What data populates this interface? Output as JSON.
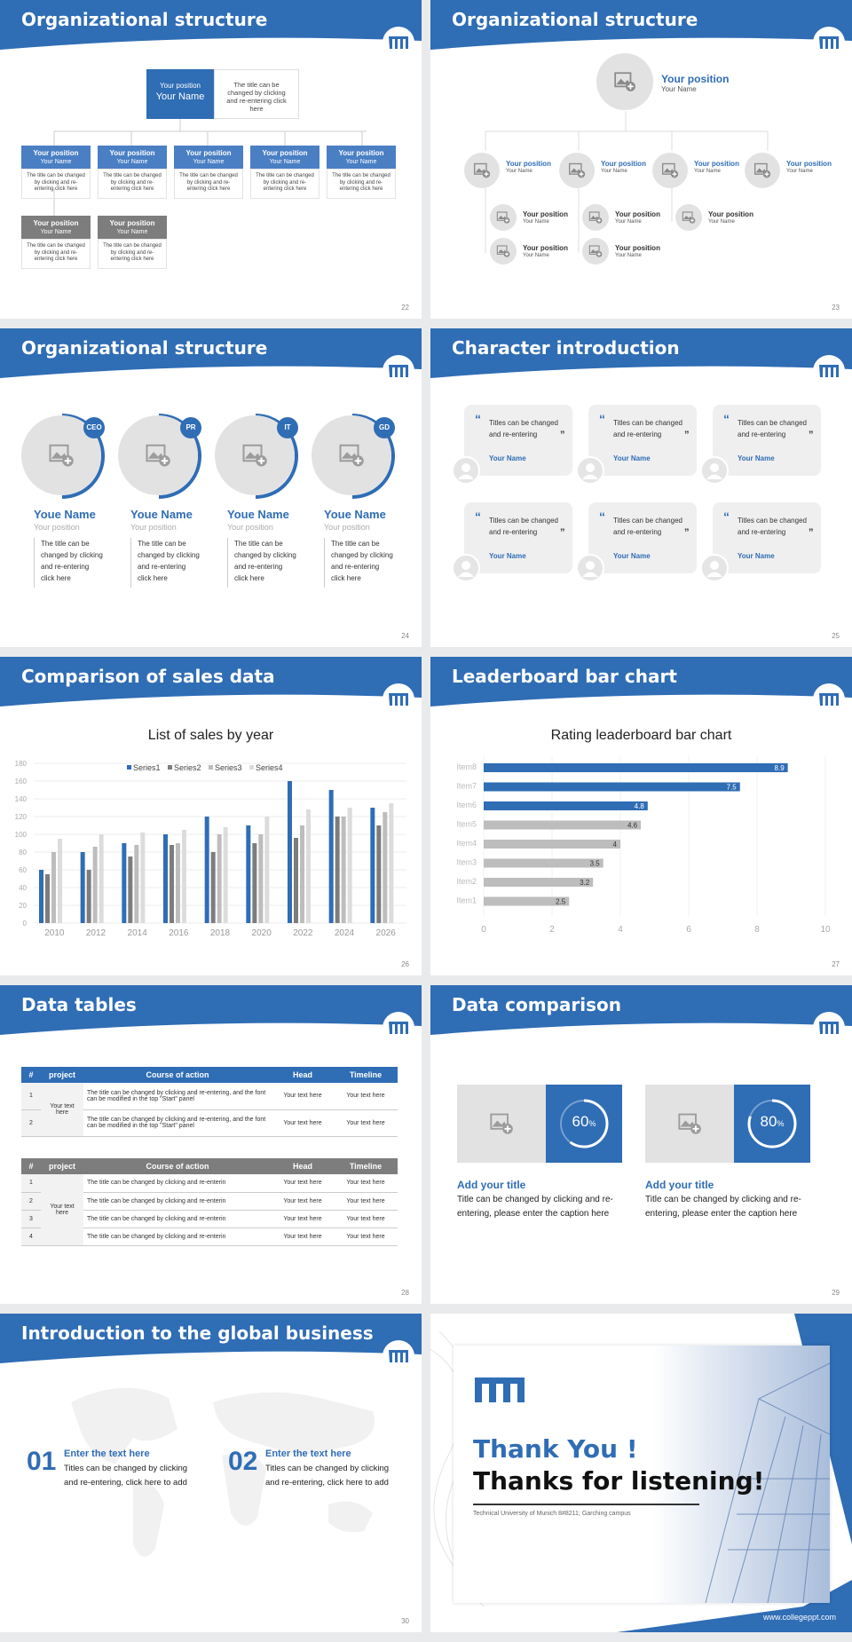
{
  "colors": {
    "brand": "#2f6db5",
    "gray_box": "#7d7d7d",
    "light_gray": "#e2e2e2"
  },
  "logo_text": "TUM",
  "s22": {
    "title": "Organizational structure",
    "num": "22",
    "top": {
      "pos": "Your position",
      "name": "Your Name",
      "desc": "The title can be changed by clicking and re-entering click here"
    },
    "items": [
      {
        "pos": "Your position",
        "name": "Your Name",
        "desc": "The title can be changed by clicking and re-entering click here"
      },
      {
        "pos": "Your position",
        "name": "Your Name",
        "desc": "The title can be changed by clicking and re-entering click here"
      },
      {
        "pos": "Your position",
        "name": "Your Name",
        "desc": "The title can be changed by clicking and re-entering click here"
      },
      {
        "pos": "Your position",
        "name": "Your Name",
        "desc": "The title can be changed by clicking and re-entering click here"
      },
      {
        "pos": "Your position",
        "name": "Your Name",
        "desc": "The title can be changed by clicking and re-entering click here"
      },
      {
        "pos": "Your position",
        "name": "Your Name",
        "desc": "The title can be changed by clicking and re-entering click here"
      },
      {
        "pos": "Your position",
        "name": "Your Name",
        "desc": "The title can be changed by clicking and re-entering click here"
      }
    ]
  },
  "s23": {
    "title": "Organizational structure",
    "num": "23",
    "pos": "Your position",
    "name": "Your Name"
  },
  "s24": {
    "title": "Organizational structure",
    "num": "24",
    "people": [
      {
        "badge": "CEO",
        "name": "Youe Name",
        "pos": "Your position",
        "desc": "The title can be changed by clicking and re-entering click here"
      },
      {
        "badge": "PR",
        "name": "Youe Name",
        "pos": "Your position",
        "desc": "The title can be changed by clicking and re-entering click here"
      },
      {
        "badge": "IT",
        "name": "Youe Name",
        "pos": "Your position",
        "desc": "The title can be changed by clicking and re-entering click here"
      },
      {
        "badge": "GD",
        "name": "Youe Name",
        "pos": "Your position",
        "desc": "The title can be changed by clicking and re-entering click here"
      }
    ]
  },
  "s25": {
    "title": "Character introduction",
    "num": "25",
    "quote": "Titles can be changed and re-entering",
    "name": "Your Name"
  },
  "s26": {
    "title": "Comparison of sales data",
    "num": "26"
  },
  "s27": {
    "title": "Leaderboard bar chart",
    "num": "27"
  },
  "chart_data": [
    {
      "type": "bar",
      "title": "List of sales by year",
      "categories": [
        "2010",
        "2012",
        "2014",
        "2016",
        "2018",
        "2020",
        "2022",
        "2024",
        "2026"
      ],
      "series": [
        {
          "name": "Series1",
          "values": [
            60,
            80,
            90,
            100,
            120,
            110,
            160,
            150,
            130
          ]
        },
        {
          "name": "Series2",
          "values": [
            55,
            60,
            75,
            88,
            80,
            90,
            96,
            120,
            110
          ]
        },
        {
          "name": "Series3",
          "values": [
            80,
            86,
            88,
            90,
            100,
            100,
            110,
            120,
            125
          ]
        },
        {
          "name": "Series4",
          "values": [
            95,
            100,
            102,
            105,
            108,
            120,
            128,
            130,
            135
          ]
        }
      ],
      "ylim": [
        0,
        180
      ],
      "yticks": [
        0,
        20,
        40,
        60,
        80,
        100,
        120,
        140,
        160,
        180
      ],
      "legend": "top",
      "grid": true
    },
    {
      "type": "bar",
      "orientation": "horizontal",
      "title": "Rating leaderboard bar chart",
      "categories": [
        "Item8",
        "Item7",
        "Item6",
        "Item5",
        "Item4",
        "Item3",
        "Item2",
        "Item1"
      ],
      "values": [
        8.9,
        7.5,
        4.8,
        4.6,
        4,
        3.5,
        3.2,
        2.5
      ],
      "xlim": [
        0,
        10
      ],
      "xticks": [
        0,
        2,
        4,
        6,
        8,
        10
      ]
    }
  ],
  "s28": {
    "title": "Data tables",
    "num": "28",
    "headers": [
      "#",
      "project",
      "Course of action",
      "Head",
      "Timeline"
    ],
    "t1": {
      "project": "Your text here",
      "rows": [
        {
          "n": "1",
          "c": "The title can be changed by clicking and re-entering, and the font can be modified in the top \"Start\" panel",
          "h": "Your text here",
          "t": "Your text here"
        },
        {
          "n": "2",
          "c": "The title can be changed by clicking and re-entering, and the font can be modified in the top \"Start\" panel",
          "h": "Your text here",
          "t": "Your text here"
        }
      ]
    },
    "t2": {
      "project": "Your text here",
      "rows": [
        {
          "n": "1",
          "c": "The title can be changed by clicking and re-enterin",
          "h": "Your text here",
          "t": "Your text here"
        },
        {
          "n": "2",
          "c": "The title can be changed by clicking and re-enterin",
          "h": "Your text here",
          "t": "Your text here"
        },
        {
          "n": "3",
          "c": "The title can be changed by clicking and re-enterin",
          "h": "Your text here",
          "t": "Your text here"
        },
        {
          "n": "4",
          "c": "The title can be changed by clicking and re-enterin",
          "h": "Your text here",
          "t": "Your text here"
        }
      ]
    }
  },
  "s29": {
    "title": "Data comparison",
    "num": "29",
    "cards": [
      {
        "pct": "60",
        "progress": 0.6,
        "title": "Add your title",
        "desc": "Title can be changed by clicking and re-entering, please enter the caption here"
      },
      {
        "pct": "80",
        "progress": 0.8,
        "title": "Add your title",
        "desc": "Title can be changed by clicking and re-entering, please enter the caption here"
      }
    ]
  },
  "s30": {
    "title": "Introduction to the global business",
    "num": "30",
    "items": [
      {
        "n": "01",
        "title": "Enter the text here",
        "desc": "Titles can be changed by clicking and re-entering, click here to add"
      },
      {
        "n": "02",
        "title": "Enter the text here",
        "desc": "Titles can be changed by clicking and re-entering, click here to add"
      }
    ]
  },
  "s31": {
    "thank": "Thank You !",
    "listen": "Thanks for listening!",
    "caption": "Technical University of Munich 8#8211; Garching campus",
    "url": "www.collegeppt.com"
  }
}
